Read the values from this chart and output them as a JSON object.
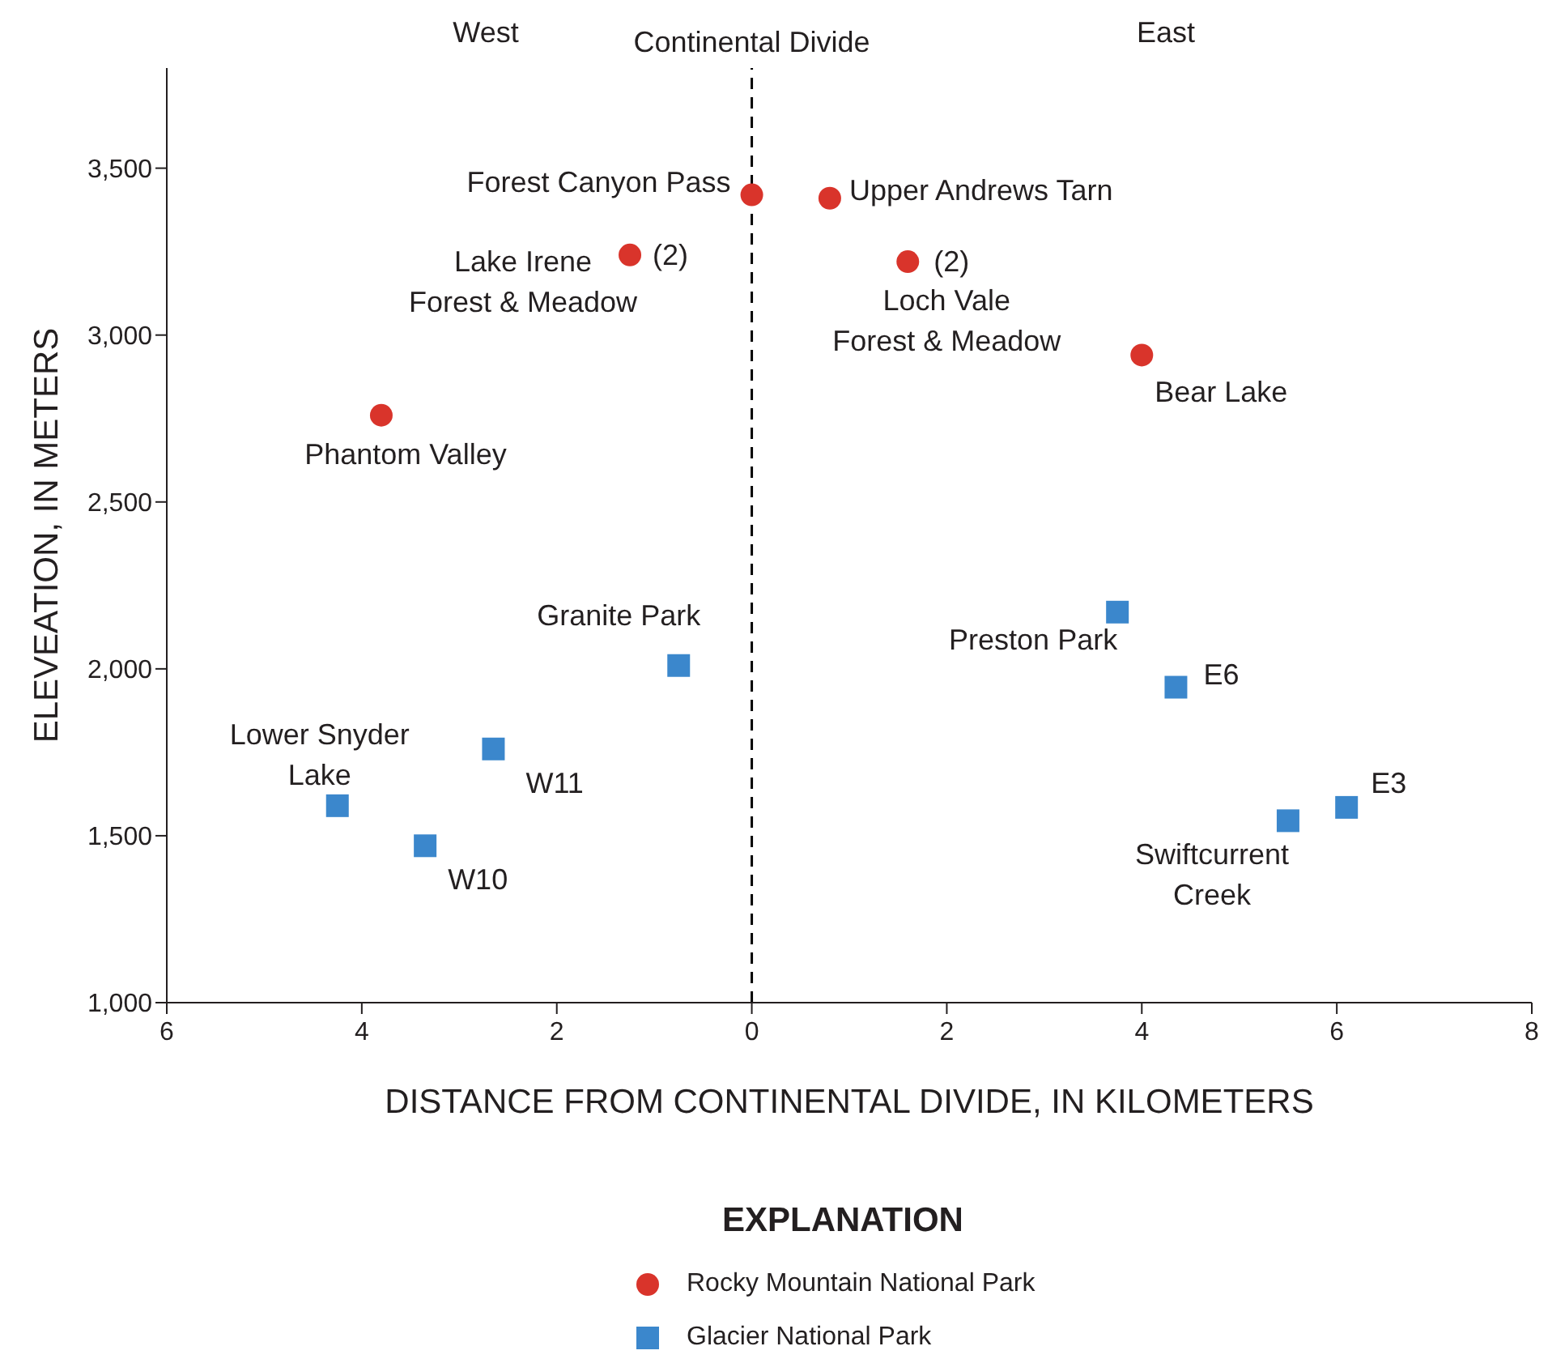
{
  "chart_data": {
    "type": "scatter",
    "xlabel": "DISTANCE FROM CONTINENTAL DIVIDE, IN KILOMETERS",
    "ylabel": "ELEVEATION, IN METERS",
    "legend_title": "EXPLANATION",
    "legend": "bottom",
    "xlim": [
      -6,
      8
    ],
    "xticks": [
      {
        "value": -6,
        "label": "6"
      },
      {
        "value": -4,
        "label": "4"
      },
      {
        "value": -2,
        "label": "2"
      },
      0,
      2,
      4,
      6,
      8
    ],
    "ylim": [
      1000,
      3800
    ],
    "yticks": [
      {
        "value": 1000,
        "label": "1,000"
      },
      {
        "value": 1500,
        "label": "1,500"
      },
      {
        "value": 2000,
        "label": "2,000"
      },
      {
        "value": 2500,
        "label": "2,500"
      },
      {
        "value": 3000,
        "label": "3,000"
      },
      {
        "value": 3500,
        "label": "3,500"
      }
    ],
    "ref_lines": [
      {
        "axis": "x",
        "value": 0,
        "label": "Continental Divide",
        "line_style": "dashed",
        "color": "#000000"
      }
    ],
    "series": [
      {
        "name": "Rocky Mountain National Park",
        "color": "#d9342b",
        "marker": "circle",
        "x": [
          0,
          0.8,
          -1.25,
          1.6,
          4.0,
          -3.8
        ],
        "values": [
          3420,
          3410,
          3240,
          3220,
          2940,
          2760
        ]
      },
      {
        "name": "Glacier National Park",
        "color": "#3b87cc",
        "marker": "square",
        "x": [
          -0.75,
          3.75,
          4.35,
          -2.65,
          -4.25,
          -3.35,
          5.5,
          6.1
        ],
        "values": [
          2010,
          2170,
          1945,
          1760,
          1590,
          1470,
          1545,
          1585
        ]
      }
    ],
    "annotations": [
      {
        "text": "Forest Canyon Pass",
        "x": 0,
        "y": 3420
      },
      {
        "text": "Upper Andrews Tarn",
        "x": 0.8,
        "y": 3410
      },
      {
        "text": "Lake Irene\nForest & Meadow",
        "x": -1.25,
        "y": 3240
      },
      {
        "text": "(2)",
        "x": -1.25,
        "y": 3240
      },
      {
        "text": "Loch Vale\nForest & Meadow",
        "x": 1.6,
        "y": 3220
      },
      {
        "text": "(2)",
        "x": 1.6,
        "y": 3220
      },
      {
        "text": "Bear Lake",
        "x": 4.0,
        "y": 2940
      },
      {
        "text": "Phantom Valley",
        "x": -3.8,
        "y": 2760
      },
      {
        "text": "Granite Park",
        "x": -0.75,
        "y": 2010
      },
      {
        "text": "Preston Park",
        "x": 3.75,
        "y": 2170
      },
      {
        "text": "E6",
        "x": 4.35,
        "y": 1945
      },
      {
        "text": "W11",
        "x": -2.65,
        "y": 1760
      },
      {
        "text": "Lower Snyder\nLake",
        "x": -4.25,
        "y": 1590
      },
      {
        "text": "W10",
        "x": -3.35,
        "y": 1470
      },
      {
        "text": "Swiftcurrent\nCreek",
        "x": 5.5,
        "y": 1545
      },
      {
        "text": "E3",
        "x": 6.1,
        "y": 1585
      },
      "West",
      "East"
    ]
  }
}
